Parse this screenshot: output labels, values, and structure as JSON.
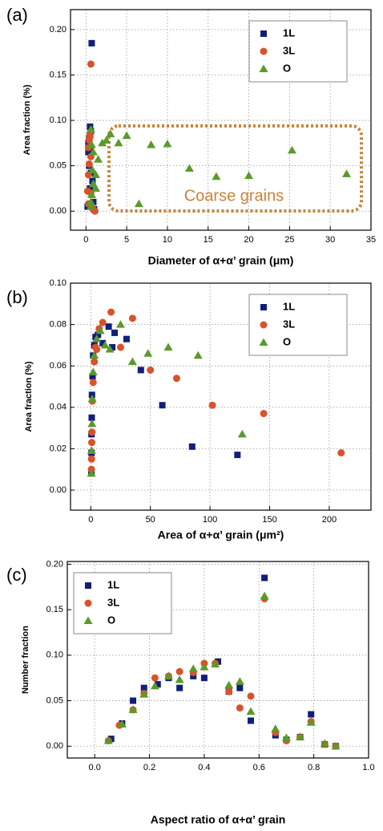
{
  "chart_data": [
    {
      "type": "scatter",
      "panel_label": "(a)",
      "x_label": "Diameter of α+α’ grain (μm)",
      "y_label": "Area fraction (%)",
      "annotation": "Coarse grains",
      "grid": true,
      "legend": "top-right",
      "xlim": [
        -1.9,
        35
      ],
      "ylim": [
        -0.021,
        0.222
      ],
      "xticks": [
        0,
        5,
        10,
        15,
        20,
        25,
        30,
        35
      ],
      "yticks": [
        {
          "value": 0,
          "label": "0.00"
        },
        {
          "value": 0.05,
          "label": "0.05"
        },
        {
          "value": 0.1,
          "label": "0.10"
        },
        {
          "value": 0.15,
          "label": "0.15"
        },
        {
          "value": 0.2,
          "label": "0.20"
        }
      ],
      "series": [
        {
          "name": "1L",
          "color": "#0f1f7a",
          "marker": "square",
          "x": [
            0.7,
            0.5,
            0.6,
            0.4,
            0.3,
            0.5,
            0.3,
            0.4,
            0.6,
            0.8,
            0.5,
            0.2,
            0.9,
            1.0
          ],
          "values": [
            0.185,
            0.093,
            0.088,
            0.08,
            0.075,
            0.068,
            0.065,
            0.05,
            0.042,
            0.033,
            0.025,
            0.005,
            0.01,
            0.002
          ]
        },
        {
          "name": "3L",
          "color": "#d9522b",
          "marker": "circle",
          "x": [
            0.6,
            0.5,
            0.5,
            0.4,
            0.3,
            0.6,
            0.4,
            0.3,
            0.2,
            0.6,
            0.3,
            0.8,
            1.1
          ],
          "values": [
            0.162,
            0.085,
            0.082,
            0.078,
            0.07,
            0.06,
            0.052,
            0.04,
            0.022,
            0.02,
            0.008,
            0.003,
            0.0
          ]
        },
        {
          "name": "O",
          "color": "#5a9a2a",
          "marker": "triangle",
          "x": [
            0.6,
            0.7,
            0.9,
            0.8,
            1.2,
            0.9,
            0.7,
            0.6,
            0.6,
            1.5,
            2,
            2.5,
            3,
            4,
            5,
            6.5,
            8,
            10,
            12.7,
            16,
            20,
            25.3,
            32,
            1.2
          ],
          "values": [
            0.09,
            0.073,
            0.065,
            0.045,
            0.04,
            0.03,
            0.018,
            0.01,
            0.005,
            0.057,
            0.075,
            0.078,
            0.085,
            0.075,
            0.083,
            0.008,
            0.073,
            0.074,
            0.047,
            0.038,
            0.039,
            0.067,
            0.041,
            0.025
          ]
        }
      ]
    },
    {
      "type": "scatter",
      "panel_label": "(b)",
      "x_label": "Area of α+α’ grain (μm²)",
      "y_label": "Area fraction (%)",
      "grid": true,
      "legend": "top-right",
      "xlim": [
        -17,
        235
      ],
      "ylim": [
        -0.0097,
        0.1
      ],
      "xticks": [
        0,
        50,
        100,
        150,
        200
      ],
      "yticks": [
        {
          "value": 0,
          "label": "0.00"
        },
        {
          "value": 0.02,
          "label": "0.02"
        },
        {
          "value": 0.04,
          "label": "0.04"
        },
        {
          "value": 0.06,
          "label": "0.06"
        },
        {
          "value": 0.08,
          "label": "0.08"
        },
        {
          "value": 0.1,
          "label": "0.10"
        }
      ],
      "series": [
        {
          "name": "1L",
          "color": "#0f1f7a",
          "marker": "square",
          "x": [
            0.5,
            0.6,
            0.6,
            0.8,
            1,
            1.5,
            2,
            3,
            4,
            6,
            10,
            15,
            20,
            30,
            42,
            60,
            85,
            123,
            18
          ],
          "values": [
            0.009,
            0.018,
            0.027,
            0.035,
            0.046,
            0.055,
            0.065,
            0.07,
            0.074,
            0.075,
            0.071,
            0.079,
            0.076,
            0.073,
            0.058,
            0.041,
            0.021,
            0.017,
            0.069
          ]
        },
        {
          "name": "3L",
          "color": "#d9522b",
          "marker": "circle",
          "x": [
            0.5,
            0.6,
            0.8,
            1,
            1.3,
            2,
            3,
            4,
            5,
            7,
            10,
            17,
            25,
            35,
            50,
            72,
            102,
            145,
            210
          ],
          "values": [
            0.01,
            0.015,
            0.023,
            0.028,
            0.043,
            0.052,
            0.062,
            0.069,
            0.068,
            0.078,
            0.081,
            0.086,
            0.069,
            0.083,
            0.058,
            0.054,
            0.041,
            0.037,
            0.018
          ]
        },
        {
          "name": "O",
          "color": "#5a9a2a",
          "marker": "triangle",
          "x": [
            0.5,
            0.7,
            1,
            1.2,
            2,
            3,
            5,
            8,
            12,
            16,
            25,
            35,
            48,
            65,
            90,
            127
          ],
          "values": [
            0.008,
            0.019,
            0.032,
            0.044,
            0.057,
            0.065,
            0.073,
            0.077,
            0.07,
            0.068,
            0.08,
            0.062,
            0.066,
            0.069,
            0.065,
            0.027
          ]
        }
      ]
    },
    {
      "type": "scatter",
      "panel_label": "(c)",
      "x_label": "Aspect ratio of α+α’ grain",
      "y_label": "Number fraction",
      "grid": true,
      "legend": "top-left",
      "xlim": [
        -0.1,
        1.0
      ],
      "ylim": [
        -0.013,
        0.203
      ],
      "xticks": [
        {
          "value": 0,
          "label": "0.0"
        },
        0.2,
        0.4,
        0.6,
        0.8,
        {
          "value": 1,
          "label": "1.0"
        }
      ],
      "yticks": [
        {
          "value": 0,
          "label": "0.00"
        },
        {
          "value": 0.05,
          "label": "0.05"
        },
        {
          "value": 0.1,
          "label": "0.10"
        },
        {
          "value": 0.15,
          "label": "0.15"
        },
        {
          "value": 0.2,
          "label": "0.20"
        }
      ],
      "series": [
        {
          "name": "1L",
          "color": "#0f1f7a",
          "marker": "square",
          "x": [
            0.06,
            0.1,
            0.14,
            0.18,
            0.23,
            0.27,
            0.31,
            0.36,
            0.4,
            0.45,
            0.49,
            0.53,
            0.57,
            0.62,
            0.66,
            0.7,
            0.75,
            0.79,
            0.84,
            0.88
          ],
          "values": [
            0.008,
            0.025,
            0.05,
            0.064,
            0.068,
            0.075,
            0.064,
            0.077,
            0.075,
            0.093,
            0.06,
            0.064,
            0.028,
            0.185,
            0.012,
            0.007,
            0.01,
            0.035,
            0.002,
            0.0
          ]
        },
        {
          "name": "3L",
          "color": "#d9522b",
          "marker": "circle",
          "x": [
            0.05,
            0.09,
            0.14,
            0.18,
            0.22,
            0.27,
            0.31,
            0.36,
            0.4,
            0.44,
            0.49,
            0.53,
            0.57,
            0.62,
            0.66,
            0.7,
            0.75,
            0.79,
            0.84,
            0.88
          ],
          "values": [
            0.006,
            0.023,
            0.04,
            0.058,
            0.075,
            0.077,
            0.082,
            0.081,
            0.091,
            0.091,
            0.06,
            0.042,
            0.055,
            0.162,
            0.015,
            0.006,
            0.01,
            0.027,
            0.002,
            0.0
          ]
        },
        {
          "name": "O",
          "color": "#5a9a2a",
          "marker": "triangle",
          "x": [
            0.05,
            0.1,
            0.14,
            0.18,
            0.22,
            0.27,
            0.31,
            0.36,
            0.4,
            0.44,
            0.49,
            0.53,
            0.57,
            0.62,
            0.66,
            0.7,
            0.75,
            0.79,
            0.84,
            0.88
          ],
          "values": [
            0.006,
            0.024,
            0.04,
            0.057,
            0.066,
            0.077,
            0.073,
            0.085,
            0.087,
            0.09,
            0.067,
            0.071,
            0.038,
            0.165,
            0.019,
            0.009,
            0.01,
            0.026,
            0.003,
            0.0
          ]
        }
      ]
    }
  ]
}
